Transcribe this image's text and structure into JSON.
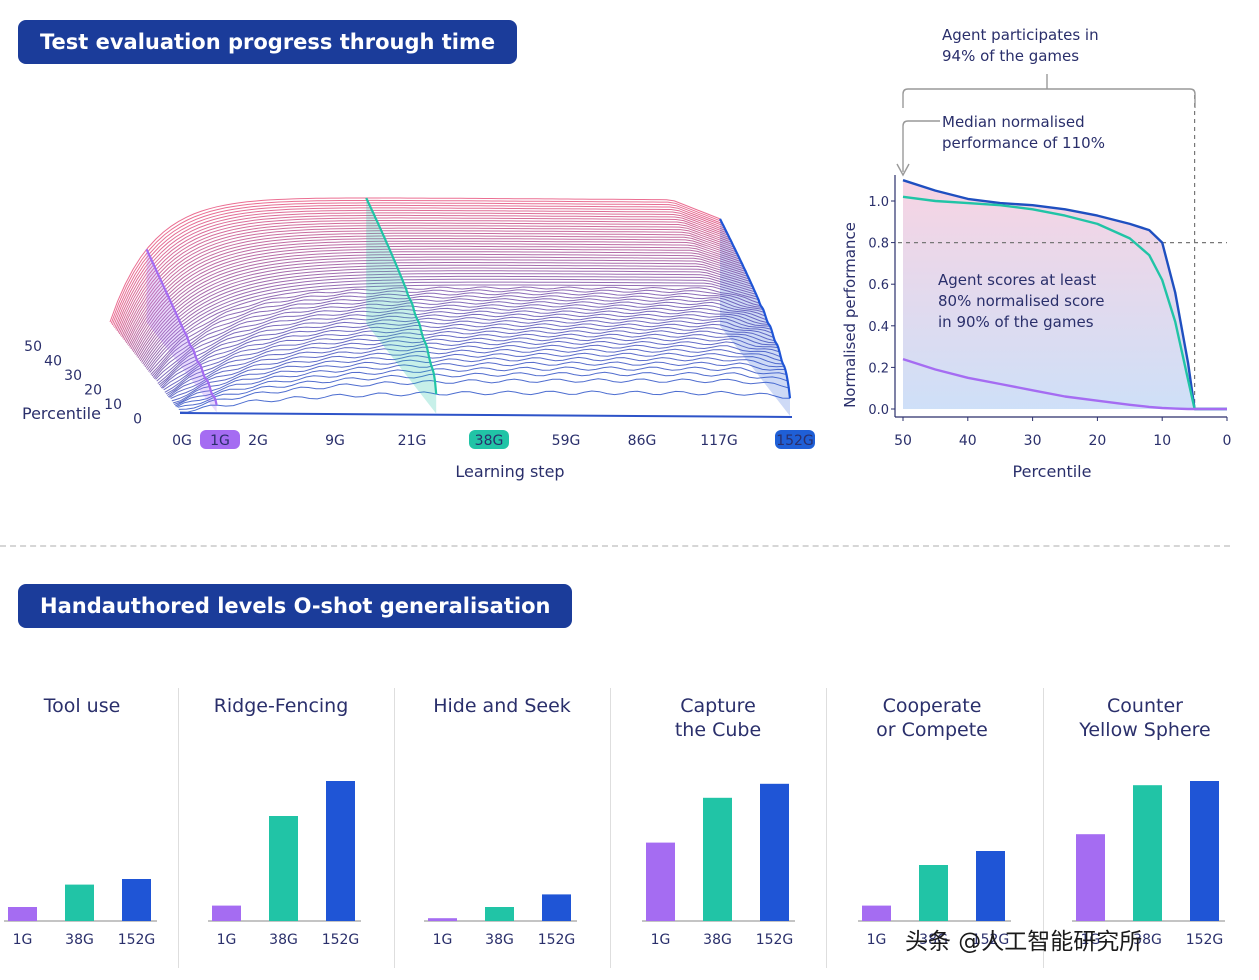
{
  "top_banner": "Test evaluation progress through time",
  "bottom_banner": "Handauthored levels O-shot generalisation",
  "chart3d": {
    "percentile_label": "Percentile",
    "percentile_ticks": [
      "50",
      "40",
      "30",
      "20",
      "10",
      "0"
    ],
    "x_label": "Learning step",
    "x_ticks": [
      "0G",
      "1G",
      "2G",
      "9G",
      "21G",
      "38G",
      "59G",
      "86G",
      "117G",
      "152G"
    ],
    "highlighted": {
      "1G": "#a56cf2",
      "38G": "#21c4a6",
      "152G": "#1f5fd6"
    }
  },
  "annotations": {
    "participates": "Agent participates in\n94% of the games",
    "median": "Median normalised\nperformance of 110%",
    "scores": "Agent scores at least\n80% normalised score\nin 90% of the games"
  },
  "chart_data": [
    {
      "type": "line",
      "xlabel": "Percentile",
      "ylabel": "Normalised performance",
      "xlim": [
        50,
        0
      ],
      "ylim": [
        0,
        1.1
      ],
      "x_ticks": [
        "50",
        "40",
        "30",
        "20",
        "10",
        "0"
      ],
      "y_ticks": [
        "1.0",
        "0.8",
        "0.6",
        "0.4",
        "0.2",
        "0.0"
      ],
      "reference_y": 0.8,
      "reference_x": 5,
      "x": [
        50,
        45,
        40,
        35,
        30,
        25,
        20,
        15,
        12,
        10,
        8,
        6,
        5,
        4,
        2,
        0
      ],
      "series": [
        {
          "name": "152G",
          "color": "#1f4fc0",
          "values": [
            1.1,
            1.05,
            1.01,
            0.99,
            0.98,
            0.96,
            0.93,
            0.89,
            0.86,
            0.8,
            0.56,
            0.22,
            0.0,
            0.0,
            0.0,
            0.0
          ]
        },
        {
          "name": "38G",
          "color": "#21c4a6",
          "values": [
            1.02,
            1.0,
            0.99,
            0.98,
            0.96,
            0.93,
            0.89,
            0.82,
            0.74,
            0.62,
            0.42,
            0.14,
            0.0,
            0.0,
            0.0,
            0.0
          ]
        },
        {
          "name": "1G",
          "color": "#a56cf2",
          "values": [
            0.24,
            0.19,
            0.15,
            0.12,
            0.09,
            0.06,
            0.04,
            0.02,
            0.01,
            0.005,
            0.002,
            0.0,
            0.0,
            0.0,
            0.0,
            0.0
          ]
        }
      ]
    },
    {
      "type": "bar",
      "panels": [
        {
          "title": "Tool use",
          "categories": [
            "1G",
            "38G",
            "152G"
          ],
          "values": [
            0.1,
            0.26,
            0.3
          ]
        },
        {
          "title": "Ridge-Fencing",
          "categories": [
            "1G",
            "38G",
            "152G"
          ],
          "values": [
            0.11,
            0.75,
            1.0
          ]
        },
        {
          "title": "Hide and Seek",
          "categories": [
            "1G",
            "38G",
            "152G"
          ],
          "values": [
            0.02,
            0.1,
            0.19
          ]
        },
        {
          "title": "Capture\nthe Cube",
          "categories": [
            "1G",
            "38G",
            "152G"
          ],
          "values": [
            0.56,
            0.88,
            0.98
          ]
        },
        {
          "title": "Cooperate\nor Compete",
          "categories": [
            "1G",
            "38G",
            "152G"
          ],
          "values": [
            0.11,
            0.4,
            0.5
          ]
        },
        {
          "title": "Counter\nYellow Sphere",
          "categories": [
            "1G",
            "38G",
            "152G"
          ],
          "values": [
            0.62,
            0.97,
            1.0
          ]
        }
      ],
      "colors": [
        "#a56cf2",
        "#21c4a6",
        "#1f55d6"
      ]
    }
  ],
  "watermark": "头条 @人工智能研究所"
}
